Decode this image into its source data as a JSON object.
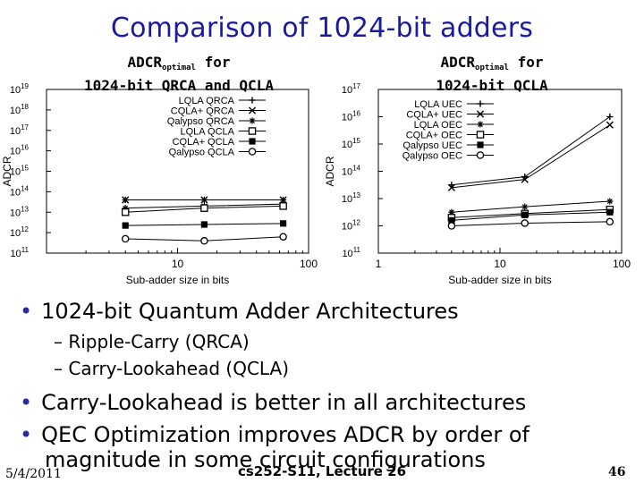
{
  "slide": {
    "title": "Comparison of 1024-bit adders",
    "left_caption": {
      "pre": "ADCR",
      "sub": "optimal",
      "post": " for",
      "line2": "1024-bit QRCA and QCLA"
    },
    "right_caption": {
      "pre": "ADCR",
      "sub": "optimal",
      "post": " for",
      "line2": "1024-bit QCLA"
    },
    "bullets": [
      "1024-bit Quantum Adder Architectures",
      "Carry-Lookahead is better in all architectures",
      "QEC Optimization improves ADCR by order of",
      "magnitude in some circuit configurations"
    ],
    "sub_bullets": [
      "– Ripple-Carry (QRCA)",
      "– Carry-Lookahead (QCLA)"
    ],
    "footer": {
      "date": "5/4/2011",
      "course": "cs252-S11, Lecture 26",
      "page": "46"
    }
  },
  "chart_data": [
    {
      "type": "line",
      "title": "ADCRoptimal for 1024-bit QRCA and QCLA",
      "xlabel": "Sub-adder size in bits",
      "ylabel": "ADCR",
      "x_scale": "log",
      "y_scale": "log",
      "xlim": [
        1,
        100
      ],
      "ylim_exp": [
        11,
        19
      ],
      "xtick_labels": [
        "10",
        "100"
      ],
      "ytick_labels": [
        "10^11",
        "10^12",
        "10^13",
        "10^14",
        "10^15",
        "10^16",
        "10^17",
        "10^18",
        "10^19"
      ],
      "x": [
        4,
        16,
        64
      ],
      "series": [
        {
          "name": "LQLA QRCA",
          "marker": "plus",
          "log10_values": [
            13.6,
            13.6,
            13.6
          ]
        },
        {
          "name": "CQLA+ QRCA",
          "marker": "x",
          "log10_values": [
            13.6,
            13.6,
            13.6
          ]
        },
        {
          "name": "Qalypso QRCA",
          "marker": "star",
          "log10_values": [
            13.2,
            13.3,
            13.4
          ]
        },
        {
          "name": "LQLA QCLA",
          "marker": "square-open",
          "log10_values": [
            13.0,
            13.2,
            13.3
          ]
        },
        {
          "name": "CQLA+ QCLA",
          "marker": "square-filled",
          "log10_values": [
            12.35,
            12.4,
            12.45
          ]
        },
        {
          "name": "Qalypso QCLA",
          "marker": "circle",
          "log10_values": [
            11.7,
            11.6,
            11.8
          ]
        }
      ]
    },
    {
      "type": "line",
      "title": "ADCRoptimal for 1024-bit QCLA",
      "xlabel": "Sub-adder size in bits",
      "ylabel": "ADCR",
      "x_scale": "log",
      "y_scale": "log",
      "xlim": [
        1,
        100
      ],
      "ylim_exp": [
        11,
        17
      ],
      "xtick_labels": [
        "1",
        "10",
        "100"
      ],
      "ytick_labels": [
        "10^11",
        "10^12",
        "10^13",
        "10^14",
        "10^15",
        "10^16",
        "10^17"
      ],
      "x": [
        4,
        16,
        80
      ],
      "series": [
        {
          "name": "LQLA UEC",
          "marker": "plus",
          "log10_values": [
            13.5,
            13.8,
            16.0
          ]
        },
        {
          "name": "CQLA+ UEC",
          "marker": "x",
          "log10_values": [
            13.4,
            13.7,
            15.7
          ]
        },
        {
          "name": "LQLA OEC",
          "marker": "star",
          "log10_values": [
            12.5,
            12.7,
            12.9
          ]
        },
        {
          "name": "CQLA+ OEC",
          "marker": "square-open",
          "log10_values": [
            12.3,
            12.45,
            12.6
          ]
        },
        {
          "name": "Qalypso UEC",
          "marker": "square-filled",
          "log10_values": [
            12.2,
            12.4,
            12.5
          ]
        },
        {
          "name": "Qalypso OEC",
          "marker": "circle",
          "log10_values": [
            12.0,
            12.1,
            12.15
          ]
        }
      ]
    }
  ]
}
